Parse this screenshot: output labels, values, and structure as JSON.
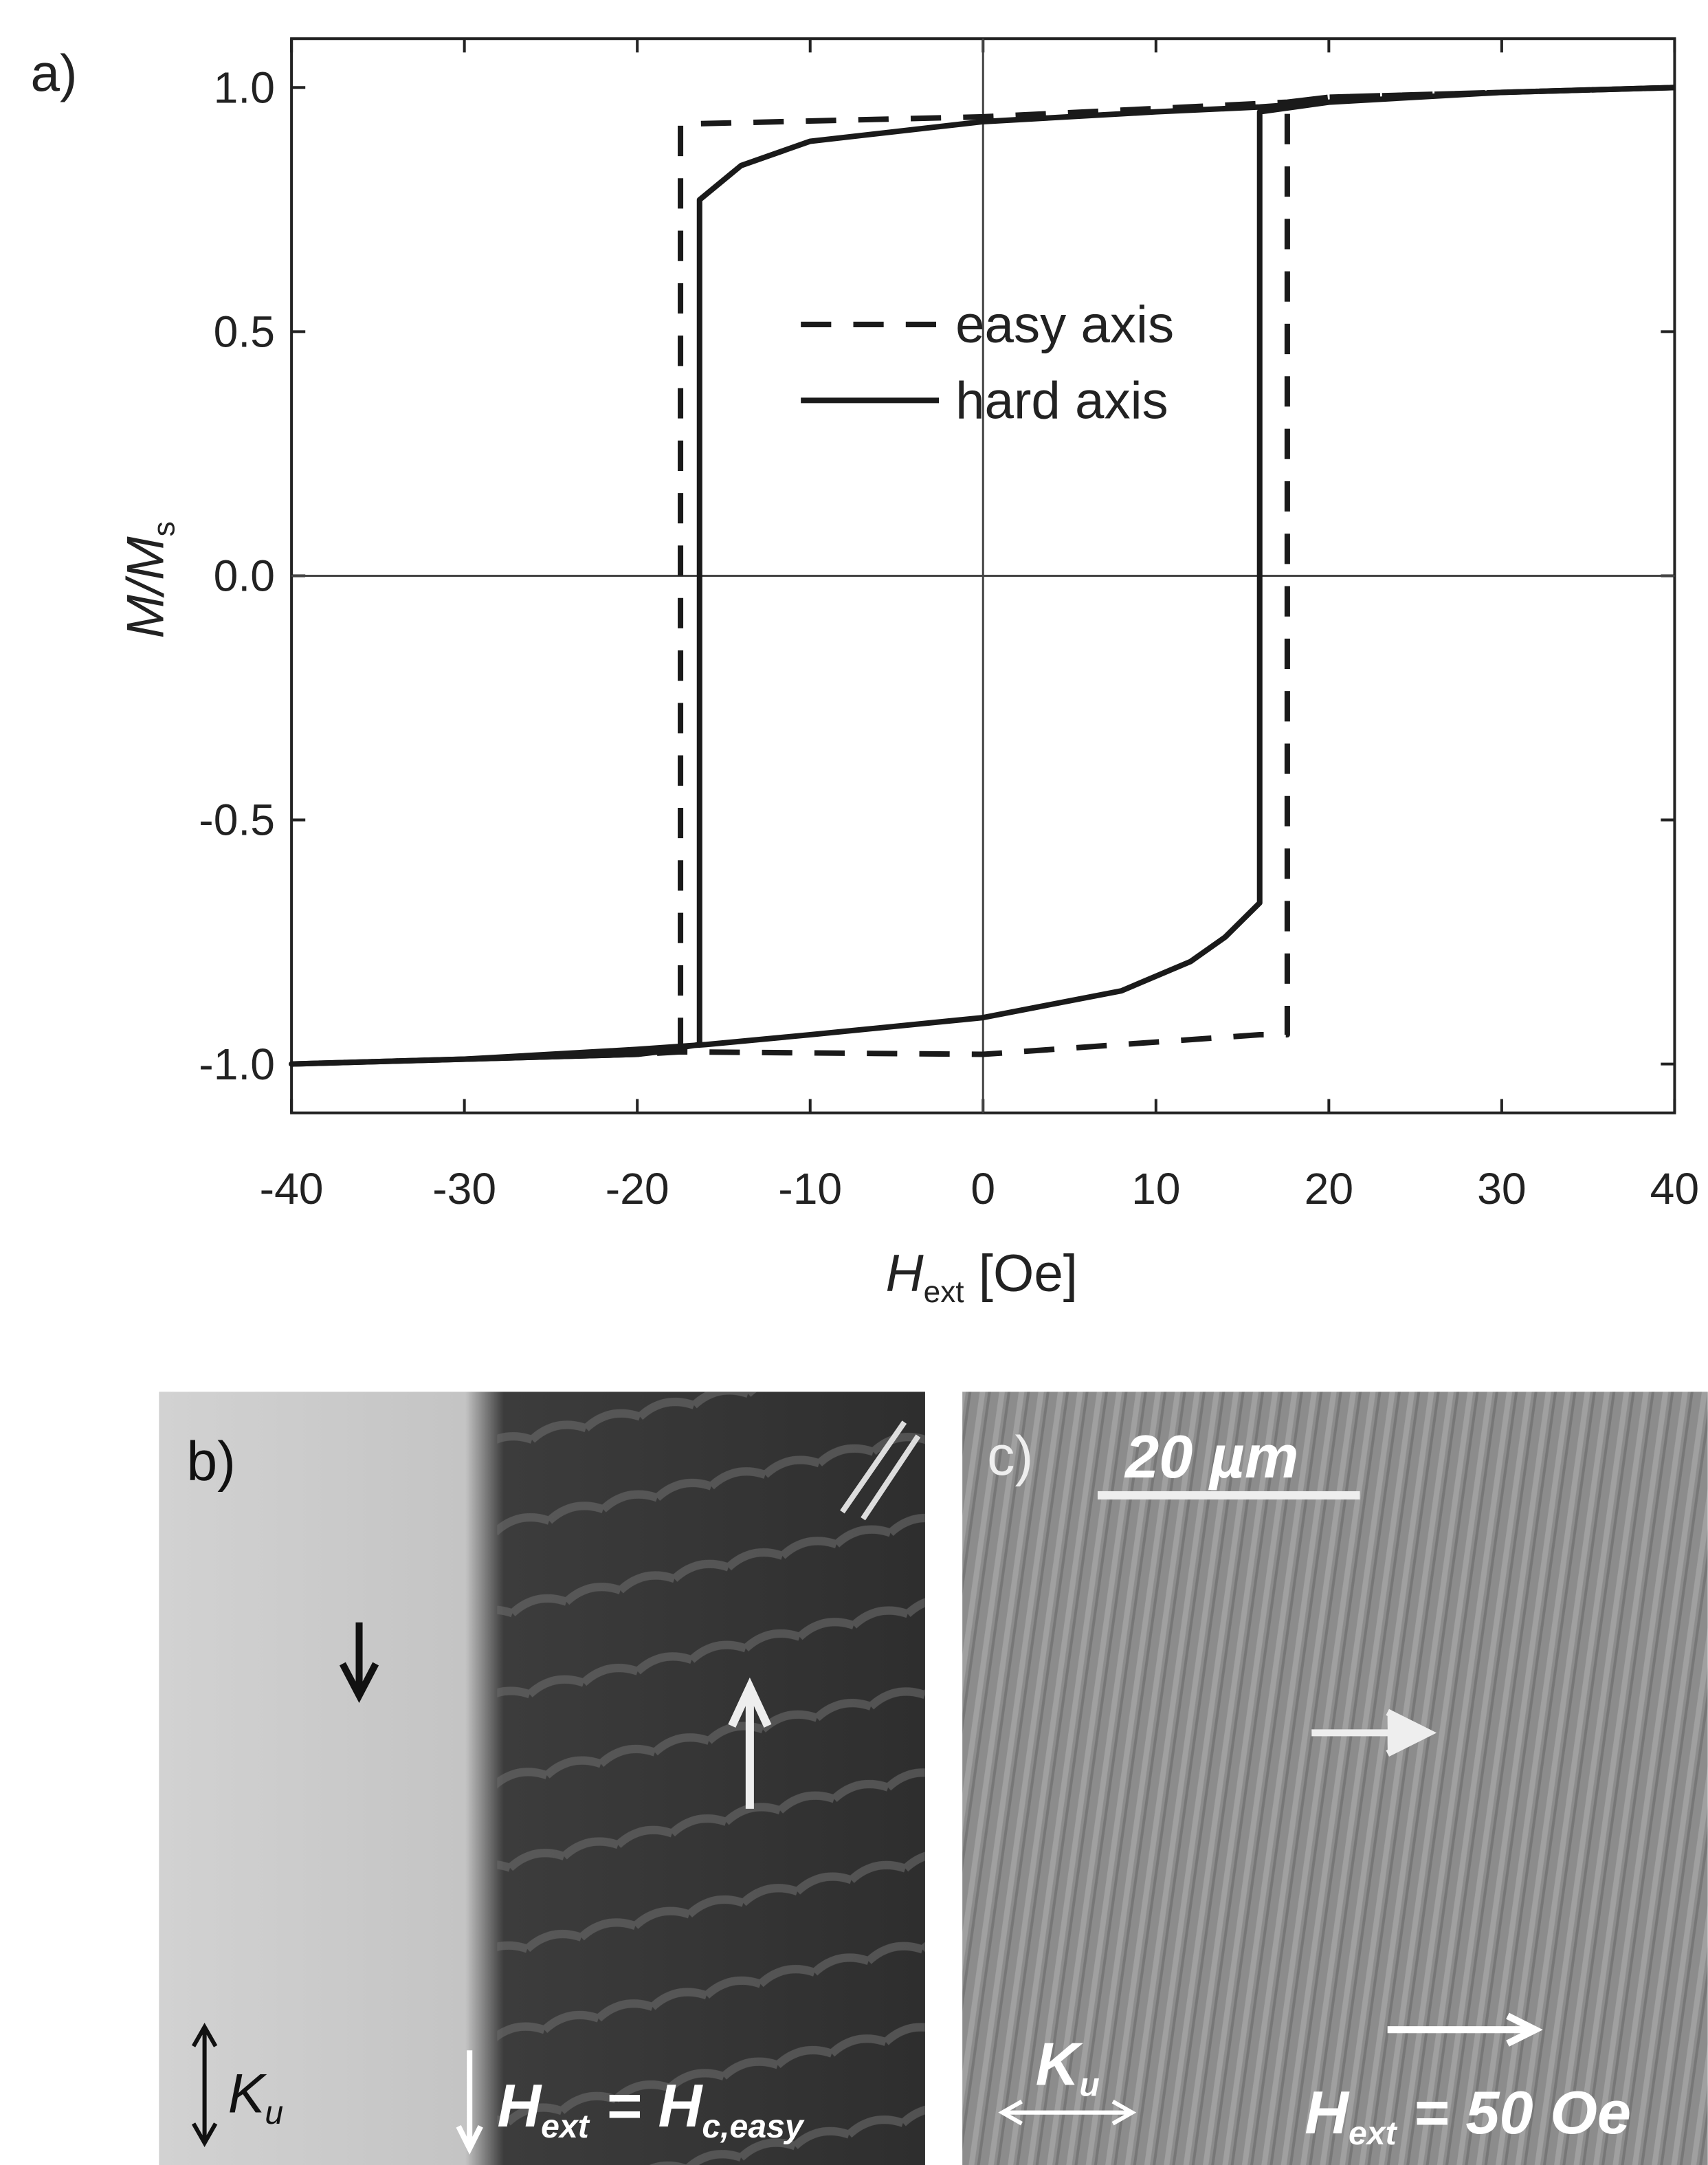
{
  "chart_data": {
    "type": "line",
    "panel_label": "a)",
    "xlabel": [
      "H",
      "ext",
      " [Oe]"
    ],
    "ylabel": [
      "M/M",
      "s"
    ],
    "xlim": [
      -40,
      40
    ],
    "ylim": [
      -1.1,
      1.1
    ],
    "xticks": [
      -40,
      -30,
      -20,
      -10,
      0,
      10,
      20,
      30,
      40
    ],
    "yticks": [
      {
        "value": -1,
        "label": "-1.0"
      },
      {
        "value": -0.5,
        "label": "-0.5"
      },
      {
        "value": 0,
        "label": "0.0"
      },
      {
        "value": 0.5,
        "label": "0.5"
      },
      {
        "value": 1,
        "label": "1.0"
      }
    ],
    "series": [
      {
        "name": "easy axis",
        "color": "#1a1a1a",
        "dash": true,
        "x": [
          40,
          20,
          17.6,
          0,
          -17.5,
          -17.5,
          -20,
          -40,
          -20,
          -17.5,
          0,
          16,
          17.6,
          17.6,
          20,
          40
        ],
        "values": [
          1.0,
          0.98,
          0.97,
          0.94,
          0.925,
          -0.97,
          -0.98,
          -1.0,
          -0.98,
          -0.975,
          -0.98,
          -0.94,
          -0.94,
          0.97,
          0.98,
          1.0
        ]
      },
      {
        "name": "hard axis",
        "color": "#1a1a1a",
        "dash": false,
        "x": [
          40,
          30,
          20,
          16,
          10,
          0,
          -10,
          -14,
          -16.4,
          -16.4,
          -20,
          -30,
          -40,
          -30,
          -20,
          -16,
          -10,
          0,
          8,
          12,
          14,
          16,
          16,
          20,
          30,
          40
        ],
        "values": [
          1.0,
          0.99,
          0.97,
          0.96,
          0.95,
          0.93,
          0.89,
          0.84,
          0.77,
          -0.96,
          -0.98,
          -0.99,
          -1.0,
          -0.99,
          -0.97,
          -0.96,
          -0.94,
          -0.905,
          -0.85,
          -0.79,
          -0.74,
          -0.67,
          0.95,
          0.97,
          0.99,
          1.0
        ]
      }
    ]
  },
  "panels": {
    "b": {
      "label": "b)",
      "ku": [
        "K",
        "u"
      ],
      "field": [
        "H",
        "ext",
        " = H",
        "c,easy"
      ]
    },
    "c": {
      "label": "c)",
      "scale": "20 µm",
      "ku": [
        "K",
        "u"
      ],
      "field": [
        "H",
        "ext",
        " = 50 Oe"
      ]
    }
  }
}
